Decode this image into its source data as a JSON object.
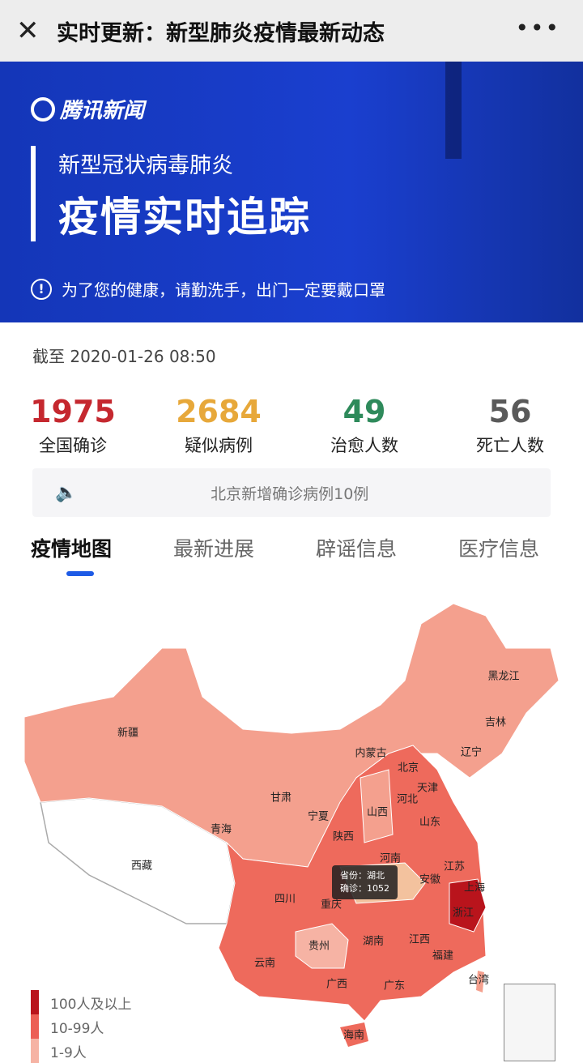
{
  "topbar": {
    "close_icon": "close-icon",
    "title": "实时更新：新型肺炎疫情最新动态",
    "more_icon": "more-icon"
  },
  "banner": {
    "logo": "腾讯新闻",
    "subtitle": "新型冠状病毒肺炎",
    "headline": "疫情实时追踪",
    "notice": "为了您的健康，请勤洗手，出门一定要戴口罩"
  },
  "as_of": "截至 2020-01-26 08:50",
  "stats": [
    {
      "value": "1975",
      "label": "全国确诊",
      "color": "#c5282f"
    },
    {
      "value": "2684",
      "label": "疑似病例",
      "color": "#e7a83a"
    },
    {
      "value": "49",
      "label": "治愈人数",
      "color": "#2e8a5b"
    },
    {
      "value": "56",
      "label": "死亡人数",
      "color": "#5a5a5a"
    }
  ],
  "ticker": {
    "icon": "speaker-icon",
    "text": "北京新增确诊病例10例"
  },
  "tabs": [
    {
      "label": "疫情地图",
      "active": true
    },
    {
      "label": "最新进展"
    },
    {
      "label": "辟谣信息"
    },
    {
      "label": "医疗信息"
    }
  ],
  "map": {
    "provinces": [
      "黑龙江",
      "吉林",
      "辽宁",
      "内蒙古",
      "北京",
      "天津",
      "河北",
      "山东",
      "新疆",
      "甘肃",
      "宁夏",
      "山西",
      "青海",
      "陕西",
      "河南",
      "江苏",
      "西藏",
      "安徽",
      "上海",
      "四川",
      "重庆",
      "浙江",
      "贵州",
      "湖南",
      "江西",
      "福建",
      "云南",
      "广西",
      "广东",
      "台湾",
      "海南"
    ],
    "tooltip": {
      "province_label": "省份：湖北",
      "confirmed_label": "确诊：1052"
    },
    "legend": [
      {
        "label": "100人及以上",
        "color": "#b9141c"
      },
      {
        "label": "10-99人",
        "color": "#ec5f55"
      },
      {
        "label": "1-9人",
        "color": "#f6b3a4"
      }
    ]
  }
}
